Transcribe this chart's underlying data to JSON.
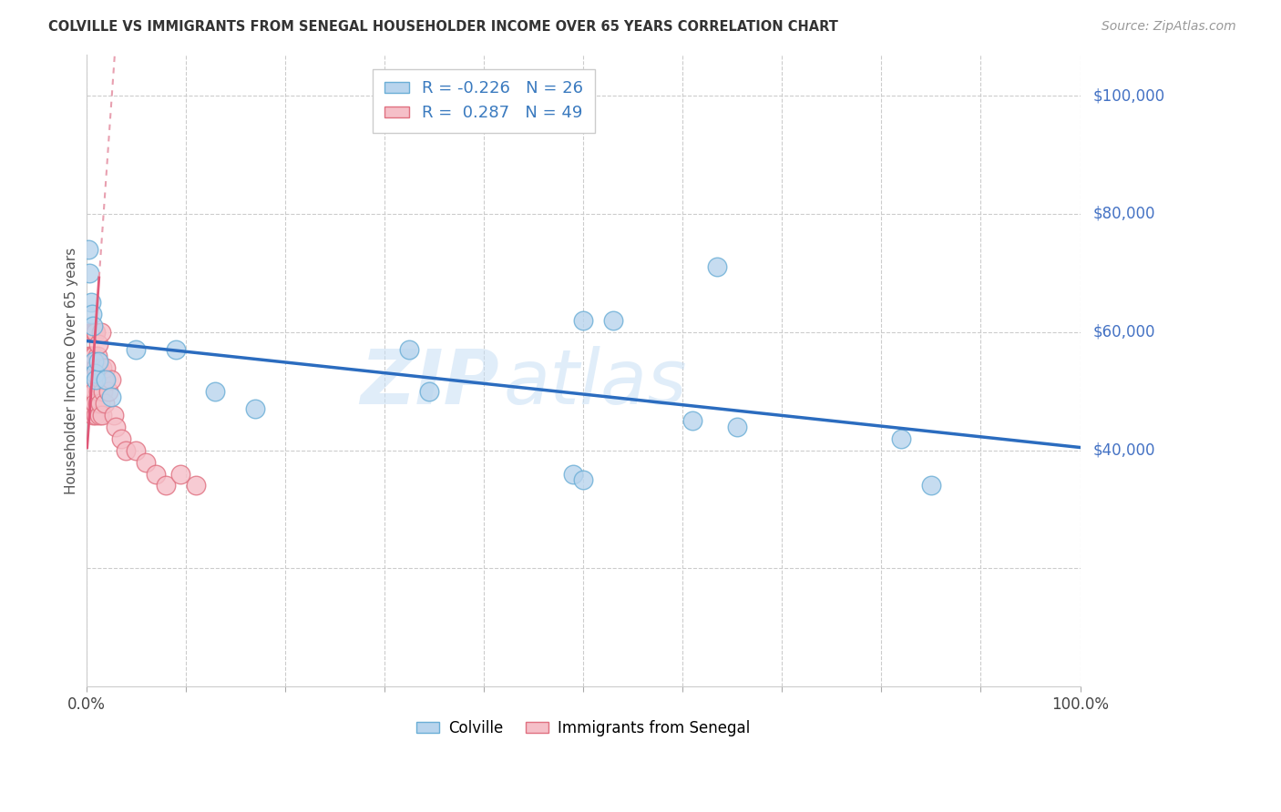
{
  "title": "COLVILLE VS IMMIGRANTS FROM SENEGAL HOUSEHOLDER INCOME OVER 65 YEARS CORRELATION CHART",
  "source": "Source: ZipAtlas.com",
  "ylabel": "Householder Income Over 65 years",
  "xmin": 0.0,
  "xmax": 1.0,
  "ymin": 0,
  "ymax": 107000,
  "colville_color": "#b8d4ed",
  "senegal_color": "#f5bfc8",
  "colville_edge": "#6aaed6",
  "senegal_edge": "#e07080",
  "trend_colville_color": "#2b6cbf",
  "trend_senegal_solid_color": "#e05878",
  "trend_senegal_dash_color": "#e8a0b0",
  "legend_R_colville": "-0.226",
  "legend_N_colville": "26",
  "legend_R_senegal": "0.287",
  "legend_N_senegal": "49",
  "colville_x": [
    0.002,
    0.003,
    0.004,
    0.005,
    0.006,
    0.007,
    0.008,
    0.009,
    0.01,
    0.012,
    0.02,
    0.025,
    0.05,
    0.09,
    0.13,
    0.17,
    0.32,
    0.34,
    0.5,
    0.53,
    0.6,
    0.63,
    0.65,
    0.82,
    0.85,
    0.5
  ],
  "colville_y": [
    74000,
    70000,
    68000,
    65000,
    63000,
    62000,
    55000,
    53000,
    52000,
    55000,
    52000,
    49000,
    57000,
    57000,
    50000,
    48000,
    57000,
    50000,
    62000,
    62000,
    45000,
    72000,
    44000,
    42000,
    34000,
    35000
  ],
  "senegal_x": [
    0.001,
    0.002,
    0.003,
    0.003,
    0.004,
    0.004,
    0.005,
    0.005,
    0.005,
    0.006,
    0.006,
    0.007,
    0.007,
    0.007,
    0.008,
    0.008,
    0.009,
    0.009,
    0.01,
    0.01,
    0.01,
    0.011,
    0.011,
    0.012,
    0.012,
    0.013,
    0.013,
    0.014,
    0.014,
    0.015,
    0.015,
    0.016,
    0.016,
    0.017,
    0.018,
    0.019,
    0.02,
    0.022,
    0.025,
    0.028,
    0.03,
    0.035,
    0.04,
    0.05,
    0.06,
    0.07,
    0.08,
    0.095,
    0.11
  ],
  "senegal_y": [
    52000,
    54000,
    56000,
    50000,
    52000,
    48000,
    60000,
    54000,
    50000,
    56000,
    48000,
    60000,
    52000,
    46000,
    56000,
    50000,
    60000,
    48000,
    60000,
    54000,
    46000,
    56000,
    48000,
    58000,
    50000,
    54000,
    46000,
    52000,
    48000,
    60000,
    52000,
    54000,
    46000,
    50000,
    52000,
    48000,
    54000,
    50000,
    52000,
    46000,
    44000,
    42000,
    40000,
    40000,
    38000,
    36000,
    34000,
    36000,
    34000
  ],
  "watermark_zip": "ZIP",
  "watermark_atlas": "atlas",
  "background_color": "#ffffff"
}
